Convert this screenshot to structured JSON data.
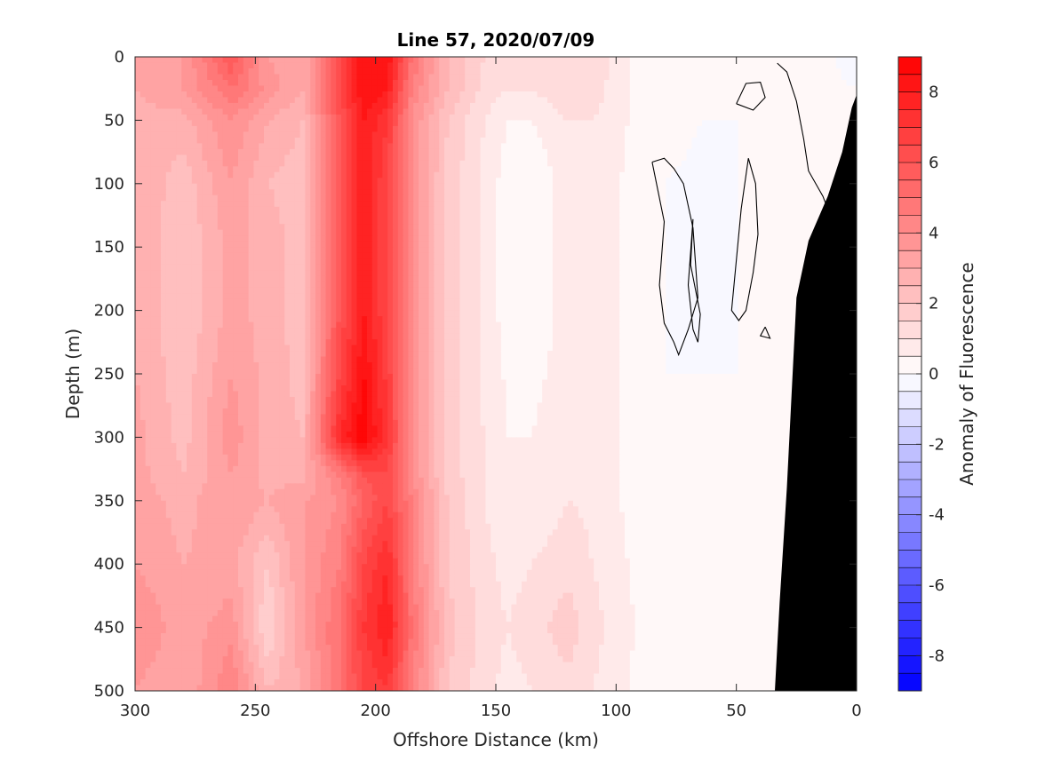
{
  "chart_data": {
    "type": "heatmap",
    "subtype": "filled-contour section",
    "title": "Line 57, 2020/07/09",
    "xlabel": "Offshore Distance (km)",
    "ylabel": "Depth (m)",
    "xlim": [
      300,
      0
    ],
    "ylim": [
      500,
      0
    ],
    "x_ticks": [
      300,
      250,
      200,
      150,
      100,
      50,
      0
    ],
    "y_ticks": [
      0,
      50,
      100,
      150,
      200,
      250,
      300,
      350,
      400,
      450,
      500
    ],
    "colorbar": {
      "label": "Anomaly of Fluorescence",
      "range": [
        -9,
        9
      ],
      "levels": 36,
      "ticks": [
        8,
        6,
        4,
        2,
        0,
        -2,
        -4,
        -6,
        -8
      ],
      "colors": {
        "high": "#ff0000",
        "zero": "#ffffff",
        "low": "#0000ff"
      }
    },
    "distance_km": [
      300,
      280,
      260,
      245,
      230,
      215,
      205,
      195,
      185,
      170,
      155,
      145,
      135,
      120,
      110,
      95,
      80,
      65,
      50,
      35,
      20,
      10,
      0
    ],
    "depth_m": [
      0,
      25,
      50,
      100,
      150,
      200,
      250,
      300,
      330,
      350,
      400,
      450,
      500
    ],
    "anomaly": [
      [
        3.0,
        3.5,
        6.0,
        3.5,
        3.0,
        6.5,
        8.5,
        8.5,
        5.0,
        2.5,
        1.5,
        1.5,
        1.0,
        1.5,
        1.5,
        0.5,
        0.3,
        0.0,
        0.0,
        0.0,
        0.0,
        0.0,
        -0.5
      ],
      [
        3.0,
        3.5,
        5.0,
        3.8,
        3.0,
        6.5,
        8.5,
        8.0,
        4.5,
        2.5,
        1.3,
        1.0,
        1.0,
        1.5,
        1.3,
        0.5,
        0.3,
        0.0,
        0.0,
        0.2,
        0.3,
        0.2,
        0.0
      ],
      [
        2.8,
        2.8,
        4.0,
        3.0,
        2.5,
        6.0,
        8.0,
        7.0,
        4.0,
        2.0,
        1.0,
        0.5,
        0.5,
        1.0,
        1.0,
        0.5,
        0.2,
        0.0,
        0.0,
        0.2,
        0.3,
        0.2,
        0.0
      ],
      [
        3.0,
        2.2,
        3.5,
        2.5,
        2.2,
        6.0,
        8.0,
        6.5,
        4.0,
        1.8,
        0.9,
        0.2,
        0.0,
        0.8,
        0.9,
        0.4,
        0.0,
        -0.1,
        0.0,
        0.2,
        0.4,
        0.0,
        0.0
      ],
      [
        3.0,
        2.0,
        3.2,
        2.8,
        2.2,
        6.0,
        8.0,
        6.5,
        4.0,
        1.8,
        0.9,
        0.2,
        0.0,
        0.8,
        0.9,
        0.4,
        0.0,
        -0.1,
        0.0,
        0.2,
        0.4,
        0.0,
        0.0
      ],
      [
        3.0,
        2.0,
        3.2,
        2.8,
        2.2,
        6.0,
        8.0,
        6.5,
        4.0,
        1.8,
        0.9,
        0.2,
        0.0,
        0.8,
        0.9,
        0.4,
        0.0,
        -0.1,
        0.0,
        0.2,
        0.4,
        0.0,
        0.0
      ],
      [
        3.0,
        2.2,
        3.5,
        2.8,
        2.3,
        6.5,
        8.5,
        6.8,
        4.0,
        1.8,
        0.9,
        0.4,
        0.3,
        0.8,
        0.9,
        0.4,
        0.0,
        0.0,
        0.0,
        0.2,
        0.3,
        0.0,
        0.0
      ],
      [
        3.2,
        2.3,
        3.8,
        2.8,
        2.5,
        7.5,
        9.0,
        7.0,
        4.0,
        1.8,
        1.0,
        0.5,
        0.5,
        1.0,
        0.9,
        0.4,
        0.0,
        0.0,
        0.0,
        0.1,
        0.1,
        0.0,
        0.0
      ],
      [
        3.2,
        2.5,
        3.5,
        2.8,
        2.8,
        4.5,
        6.0,
        6.5,
        4.0,
        1.8,
        1.0,
        0.6,
        0.6,
        1.0,
        0.9,
        0.4,
        0.0,
        0.0,
        0.0,
        0.0,
        0.0,
        0.0,
        0.0
      ],
      [
        3.3,
        2.8,
        3.5,
        3.0,
        3.5,
        4.0,
        5.5,
        6.5,
        4.5,
        2.0,
        1.0,
        0.6,
        0.6,
        1.0,
        0.9,
        0.4,
        0.0,
        0.0,
        0.0,
        0.0,
        0.0,
        0.0,
        0.0
      ],
      [
        3.5,
        3.0,
        3.2,
        2.0,
        3.5,
        4.5,
        6.5,
        7.5,
        4.5,
        2.0,
        1.2,
        0.8,
        1.0,
        1.3,
        1.0,
        0.5,
        0.0,
        0.0,
        0.0,
        0.0,
        0.0,
        0.0,
        0.0
      ],
      [
        4.0,
        3.2,
        3.8,
        1.5,
        3.5,
        5.0,
        7.0,
        8.0,
        5.0,
        2.2,
        1.3,
        1.0,
        1.3,
        1.8,
        1.2,
        0.6,
        0.0,
        0.0,
        0.0,
        0.0,
        0.0,
        0.0,
        0.0
      ],
      [
        3.5,
        3.0,
        4.5,
        2.5,
        3.0,
        5.0,
        6.5,
        7.0,
        4.5,
        2.0,
        1.2,
        0.8,
        1.0,
        1.3,
        1.0,
        0.5,
        0.0,
        0.0,
        0.0,
        0.0,
        0.0,
        0.0,
        0.0
      ]
    ],
    "seafloor": {
      "color": "#000000",
      "outline": [
        [
          34,
          500
        ],
        [
          32,
          430
        ],
        [
          29,
          340
        ],
        [
          25,
          190
        ],
        [
          20,
          145
        ],
        [
          12,
          110
        ],
        [
          6,
          75
        ],
        [
          2,
          40
        ],
        [
          0,
          30
        ]
      ]
    },
    "zero_contours": [
      [
        [
          50,
          37
        ],
        [
          46,
          21
        ],
        [
          40,
          20
        ],
        [
          38,
          32
        ],
        [
          43,
          42
        ],
        [
          50,
          37
        ]
      ],
      [
        [
          68,
          128
        ],
        [
          70,
          180
        ],
        [
          68,
          215
        ],
        [
          66,
          225
        ],
        [
          65,
          203
        ],
        [
          69,
          164
        ],
        [
          68,
          128
        ]
      ],
      [
        [
          85,
          83
        ],
        [
          80,
          130
        ],
        [
          82,
          180
        ],
        [
          80,
          210
        ],
        [
          76,
          225
        ],
        [
          74,
          235
        ],
        [
          70,
          215
        ],
        [
          66,
          190
        ],
        [
          68,
          135
        ],
        [
          72,
          100
        ],
        [
          76,
          88
        ],
        [
          80,
          80
        ],
        [
          85,
          83
        ]
      ],
      [
        [
          45,
          80
        ],
        [
          42,
          100
        ],
        [
          41,
          140
        ],
        [
          43,
          170
        ],
        [
          46,
          200
        ],
        [
          49,
          208
        ],
        [
          52,
          200
        ],
        [
          50,
          160
        ],
        [
          48,
          120
        ],
        [
          45,
          80
        ]
      ],
      [
        [
          33,
          5
        ],
        [
          29,
          12
        ],
        [
          25,
          35
        ],
        [
          22,
          65
        ],
        [
          20,
          90
        ],
        [
          14,
          110
        ],
        [
          8,
          140
        ],
        [
          4,
          160
        ],
        [
          1,
          175
        ]
      ],
      [
        [
          38,
          213
        ],
        [
          36,
          222
        ],
        [
          40,
          220
        ],
        [
          38,
          213
        ]
      ]
    ]
  }
}
